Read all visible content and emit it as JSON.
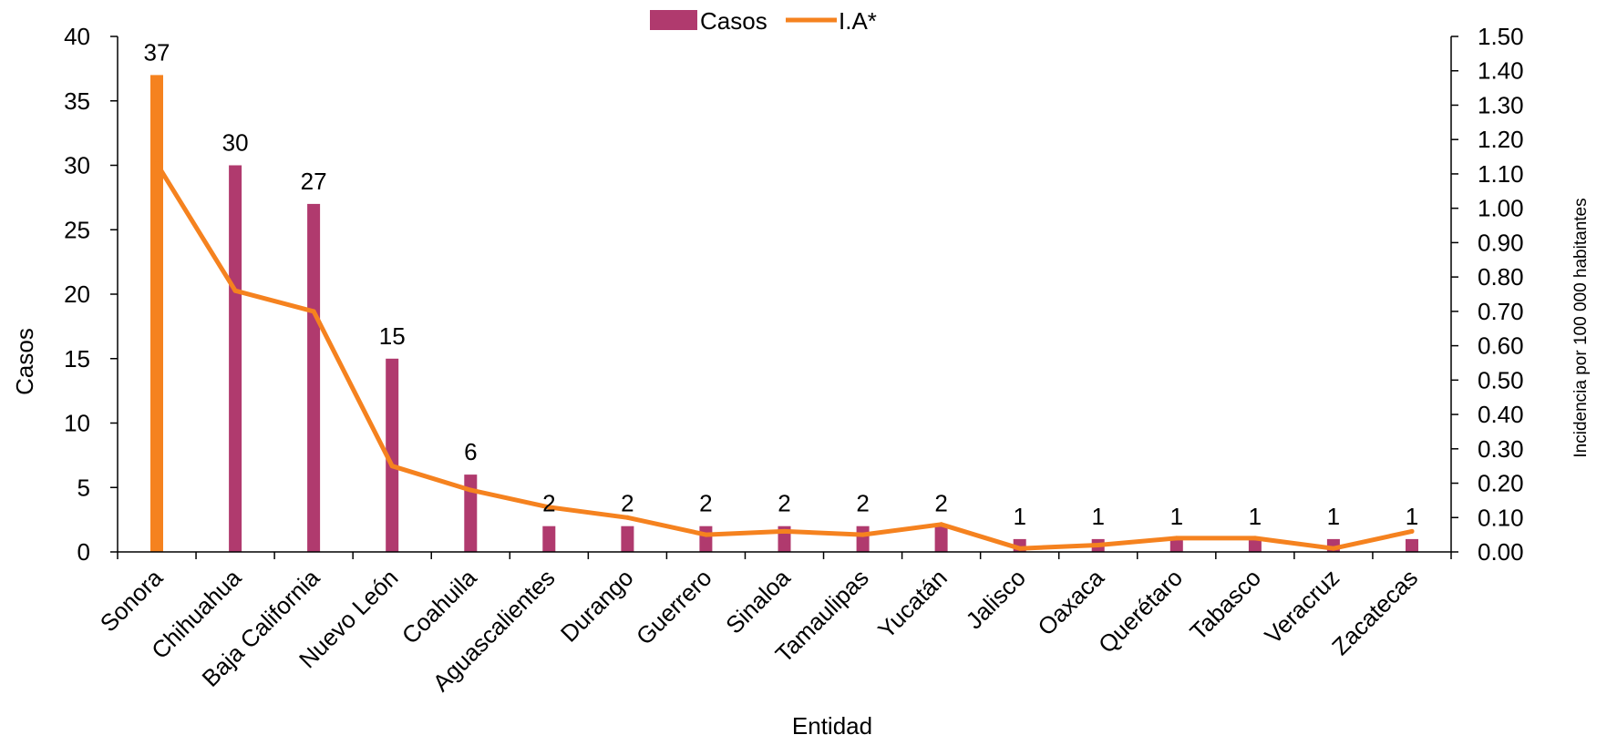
{
  "colors": {
    "bar": "#B03A6E",
    "bar_highlight": "#F5821F",
    "line": "#F5821F",
    "axis": "#000000",
    "text": "#000000"
  },
  "chart_data": {
    "type": "bar",
    "xlabel": "Entidad",
    "ylabel": "Casos",
    "y2label": "Incidencia por 100 000 habitantes",
    "ylim": [
      0,
      40
    ],
    "y2lim": [
      0,
      1.5
    ],
    "yticks": [
      "0",
      "5",
      "10",
      "15",
      "20",
      "25",
      "30",
      "35",
      "40"
    ],
    "y2ticks": [
      "0.00",
      "0.10",
      "0.20",
      "0.30",
      "0.40",
      "0.50",
      "0.60",
      "0.70",
      "0.80",
      "0.90",
      "1.00",
      "1.10",
      "1.20",
      "1.30",
      "1.40",
      "1.50"
    ],
    "legend_position": "top-center",
    "grid": false,
    "categories": [
      "Sonora",
      "Chihuahua",
      "Baja California",
      "Nuevo León",
      "Coahuila",
      "Aguascalientes",
      "Durango",
      "Guerrero",
      "Sinaloa",
      "Tamaulipas",
      "Yucatán",
      "Jalisco",
      "Oaxaca",
      "Querétaro",
      "Tabasco",
      "Veracruz",
      "Zacatecas"
    ],
    "highlight_index": 0,
    "series": [
      {
        "name": "Casos",
        "kind": "bar",
        "axis": "left",
        "values": [
          37,
          30,
          27,
          15,
          6,
          2,
          2,
          2,
          2,
          2,
          2,
          1,
          1,
          1,
          1,
          1,
          1
        ],
        "labels": [
          "37",
          "30",
          "27",
          "15",
          "6",
          "2",
          "2",
          "2",
          "2",
          "2",
          "2",
          "1",
          "1",
          "1",
          "1",
          "1",
          "1"
        ]
      },
      {
        "name": "I.A*",
        "kind": "line",
        "axis": "right",
        "values": [
          1.13,
          0.76,
          0.7,
          0.25,
          0.18,
          0.13,
          0.1,
          0.05,
          0.06,
          0.05,
          0.08,
          0.01,
          0.02,
          0.04,
          0.04,
          0.01,
          0.06
        ]
      }
    ]
  }
}
